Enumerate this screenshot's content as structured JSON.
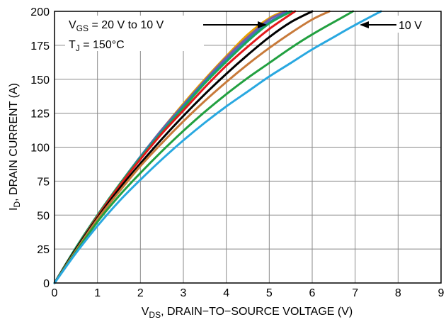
{
  "chart_data": {
    "type": "line",
    "title": "",
    "xlabel": {
      "main": "V",
      "sub": "DS",
      "rest": ", DRAIN−TO−SOURCE VOLTAGE (V)"
    },
    "ylabel": {
      "main": "I",
      "sub": "D",
      "rest": ", DRAIN CURRENT (A)"
    },
    "xlim": [
      0,
      9
    ],
    "ylim": [
      0,
      200
    ],
    "xticks": [
      "0",
      "1",
      "2",
      "3",
      "4",
      "5",
      "6",
      "7",
      "8",
      "9"
    ],
    "yticks": [
      "0",
      "25",
      "50",
      "75",
      "100",
      "125",
      "150",
      "175",
      "200"
    ],
    "grid": true,
    "legend": "none",
    "annotations": {
      "vgs": {
        "main": "V",
        "sub": "GS",
        "rest": " = 20 V to 10 V"
      },
      "tj": {
        "main": "T",
        "sub": "J",
        "rest": " = 150°C"
      },
      "v10": "10 V"
    },
    "series": [
      {
        "color": "#e8a200",
        "x": [
          0,
          0.5,
          1,
          1.5,
          2,
          2.5,
          3,
          3.5,
          4,
          4.5,
          5,
          5.35
        ],
        "y": [
          0,
          26,
          50,
          72,
          93,
          113,
          132,
          150,
          167,
          183,
          195,
          200
        ]
      },
      {
        "color": "#7b5aa6",
        "x": [
          0,
          0.5,
          1,
          1.5,
          2,
          2.5,
          3,
          3.5,
          4,
          4.5,
          5,
          5.4
        ],
        "y": [
          0,
          26,
          50,
          72,
          93,
          113,
          131,
          149,
          166,
          181,
          194,
          200
        ]
      },
      {
        "color": "#2b7bbd",
        "x": [
          0,
          0.5,
          1,
          1.5,
          2,
          2.5,
          3,
          3.5,
          4,
          4.5,
          5,
          5.48
        ],
        "y": [
          0,
          26,
          50,
          72,
          93,
          112,
          130,
          148,
          164,
          179,
          192,
          200
        ]
      },
      {
        "color": "#18a85a",
        "x": [
          0,
          0.5,
          1,
          1.5,
          2,
          2.5,
          3,
          3.5,
          4,
          4.5,
          5,
          5.52
        ],
        "y": [
          0,
          26,
          50,
          72,
          92,
          111,
          129,
          147,
          163,
          178,
          191,
          200
        ]
      },
      {
        "color": "#e31a1c",
        "x": [
          0,
          0.5,
          1,
          1.5,
          2,
          2.5,
          3,
          3.5,
          4,
          4.5,
          5,
          5.6
        ],
        "y": [
          0,
          25,
          49,
          71,
          91,
          110,
          127,
          144,
          160,
          174,
          187,
          200
        ]
      },
      {
        "color": "#000000",
        "x": [
          0,
          0.5,
          1,
          1.5,
          2,
          2.5,
          3,
          3.5,
          4,
          4.5,
          5,
          5.5,
          6
        ],
        "y": [
          0,
          25,
          48,
          69,
          88,
          106,
          123,
          139,
          154,
          168,
          181,
          192,
          200
        ]
      },
      {
        "color": "#c87a3a",
        "x": [
          0,
          0.5,
          1,
          1.5,
          2,
          2.5,
          3,
          3.5,
          4,
          4.5,
          5,
          5.5,
          6,
          6.4
        ],
        "y": [
          0,
          24,
          47,
          67,
          86,
          103,
          119,
          134,
          148,
          161,
          173,
          184,
          194,
          200
        ]
      },
      {
        "color": "#22a040",
        "x": [
          0,
          0.5,
          1,
          1.5,
          2,
          2.5,
          3,
          3.5,
          4,
          4.5,
          5,
          5.5,
          6,
          6.5,
          6.95
        ],
        "y": [
          0,
          23,
          45,
          64,
          81,
          97,
          112,
          126,
          139,
          151,
          162,
          173,
          183,
          192,
          200
        ]
      },
      {
        "color": "#29a8e0",
        "x": [
          0,
          0.5,
          1,
          1.5,
          2,
          2.5,
          3,
          3.5,
          4,
          4.5,
          5,
          5.5,
          6,
          6.5,
          7,
          7.6
        ],
        "y": [
          0,
          22,
          42,
          60,
          76,
          91,
          105,
          118,
          130,
          141,
          152,
          162,
          172,
          181,
          190,
          200
        ]
      }
    ]
  }
}
